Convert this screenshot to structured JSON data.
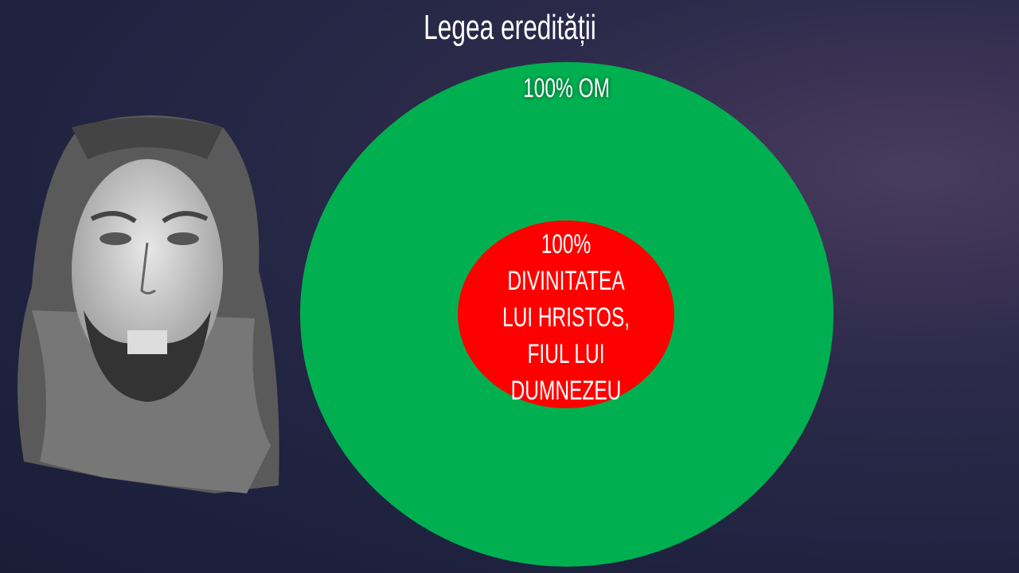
{
  "slide": {
    "title": "Legea eredității",
    "outer_circle": {
      "label": "100% OM",
      "color": "#00b050"
    },
    "inner_circle": {
      "lines": [
        "100%",
        "DIVINITATEA",
        "LUI HRISTOS,",
        "FIUL LUI",
        "DUMNEZEU"
      ],
      "color": "#ff0000"
    },
    "image": "watercolor-portrait-of-jesus"
  }
}
